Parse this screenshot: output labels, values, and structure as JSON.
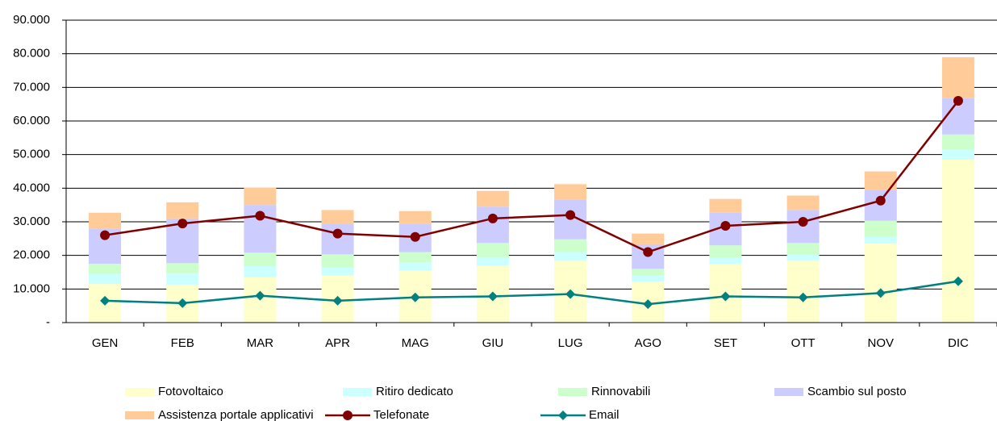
{
  "chart_data": {
    "type": "bar",
    "stacked": true,
    "categories": [
      "GEN",
      "FEB",
      "MAR",
      "APR",
      "MAG",
      "GIU",
      "LUG",
      "AGO",
      "SET",
      "OTT",
      "NOV",
      "DIC"
    ],
    "series": [
      {
        "name": "Fotovoltaico",
        "type": "bar",
        "color": "#ffffcc",
        "values": [
          11500,
          11300,
          13500,
          14000,
          15500,
          17000,
          18500,
          12200,
          17500,
          18500,
          23500,
          48500
        ]
      },
      {
        "name": "Ritiro dedicato",
        "type": "bar",
        "color": "#ccffff",
        "values": [
          3000,
          3400,
          3300,
          2500,
          2500,
          2500,
          2500,
          1800,
          1800,
          1800,
          2000,
          3000
        ]
      },
      {
        "name": "Rinnovabili",
        "type": "bar",
        "color": "#ccffcc",
        "values": [
          3000,
          3000,
          4000,
          3800,
          3000,
          4200,
          3800,
          2000,
          3700,
          3400,
          4800,
          4500
        ]
      },
      {
        "name": "Scambio sul posto",
        "type": "bar",
        "color": "#ccccff",
        "values": [
          10500,
          13300,
          14200,
          9200,
          8500,
          10800,
          11700,
          7300,
          9700,
          9800,
          9200,
          10800
        ]
      },
      {
        "name": "Assistenza portale applicativi",
        "type": "bar",
        "color": "#ffcc99",
        "values": [
          4700,
          4800,
          5200,
          4000,
          3700,
          4700,
          4700,
          3200,
          4100,
          4300,
          5500,
          12200
        ]
      },
      {
        "name": "Telefonate",
        "type": "line",
        "marker": "circle",
        "color": "#800000",
        "values": [
          26000,
          29500,
          31800,
          26500,
          25500,
          31000,
          32000,
          21000,
          28800,
          30000,
          36300,
          66000
        ]
      },
      {
        "name": "Email",
        "type": "line",
        "marker": "diamond",
        "color": "#008080",
        "values": [
          6500,
          5800,
          8000,
          6500,
          7500,
          7800,
          8500,
          5500,
          7800,
          7500,
          8800,
          12300
        ]
      }
    ],
    "ylim": [
      0,
      90000
    ],
    "yticks": [
      {
        "value": 0,
        "label": "-"
      },
      {
        "value": 10000,
        "label": "10.000"
      },
      {
        "value": 20000,
        "label": "20.000"
      },
      {
        "value": 30000,
        "label": "30.000"
      },
      {
        "value": 40000,
        "label": "40.000"
      },
      {
        "value": 50000,
        "label": "50.000"
      },
      {
        "value": 60000,
        "label": "60.000"
      },
      {
        "value": 70000,
        "label": "70.000"
      },
      {
        "value": 80000,
        "label": "80.000"
      },
      {
        "value": 90000,
        "label": "90.000"
      }
    ],
    "grid": true,
    "legend": "bottom"
  }
}
